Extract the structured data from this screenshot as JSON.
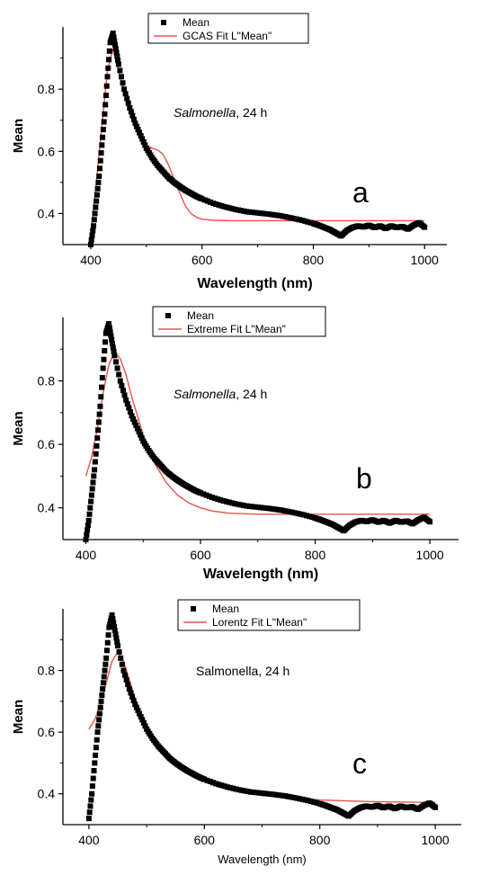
{
  "chart_data": [
    {
      "type": "scatter",
      "panel_letter": "a",
      "annotation": "Salmonella, 24 h",
      "annotation_italic_part": "Salmonella",
      "annotation_rest": ", 24 h",
      "xlabel": "Wavelength (nm)",
      "ylabel": "Mean",
      "xlim": [
        350,
        1040
      ],
      "ylim": [
        0.3,
        1.0
      ],
      "xticks": [
        400,
        600,
        800,
        1000
      ],
      "yticks": [
        0.4,
        0.6,
        0.8
      ],
      "grid": false,
      "legend_position": "top",
      "series": [
        {
          "name": "Mean",
          "style": "markers",
          "color": "#000000",
          "x": [
            400,
            405,
            410,
            415,
            420,
            425,
            430,
            435,
            440,
            445,
            450,
            460,
            470,
            480,
            490,
            500,
            510,
            520,
            530,
            540,
            550,
            560,
            570,
            580,
            590,
            600,
            620,
            640,
            660,
            680,
            700,
            720,
            740,
            760,
            780,
            800,
            810,
            820,
            830,
            840,
            850,
            860,
            870,
            880,
            890,
            900,
            910,
            920,
            930,
            940,
            950,
            960,
            970,
            980,
            990,
            1000
          ],
          "y": [
            0.3,
            0.36,
            0.44,
            0.52,
            0.62,
            0.72,
            0.84,
            0.95,
            0.98,
            0.93,
            0.88,
            0.8,
            0.74,
            0.69,
            0.65,
            0.61,
            0.58,
            0.555,
            0.535,
            0.515,
            0.5,
            0.487,
            0.475,
            0.465,
            0.455,
            0.447,
            0.433,
            0.422,
            0.413,
            0.406,
            0.402,
            0.398,
            0.393,
            0.386,
            0.378,
            0.368,
            0.362,
            0.355,
            0.348,
            0.338,
            0.328,
            0.345,
            0.355,
            0.36,
            0.357,
            0.362,
            0.355,
            0.36,
            0.352,
            0.36,
            0.355,
            0.358,
            0.35,
            0.362,
            0.37,
            0.356
          ]
        },
        {
          "name": "GCAS Fit L\"Mean\"",
          "style": "line",
          "color": "#e8534b",
          "x": [
            400,
            410,
            420,
            430,
            440,
            450,
            460,
            470,
            480,
            490,
            500,
            510,
            520,
            530,
            540,
            550,
            560,
            570,
            580,
            590,
            600,
            620,
            650,
            700,
            800,
            900,
            1000
          ],
          "y": [
            0.33,
            0.5,
            0.68,
            0.86,
            0.93,
            0.86,
            0.79,
            0.73,
            0.68,
            0.645,
            0.62,
            0.61,
            0.605,
            0.59,
            0.555,
            0.51,
            0.465,
            0.425,
            0.4,
            0.388,
            0.382,
            0.378,
            0.377,
            0.377,
            0.377,
            0.377,
            0.377
          ]
        }
      ]
    },
    {
      "type": "scatter",
      "panel_letter": "b",
      "annotation": "Salmonella, 24 h",
      "annotation_italic_part": "Salmonella",
      "annotation_rest": ", 24 h",
      "xlabel": "Wavelength (nm)",
      "ylabel": "Mean",
      "xlim": [
        360,
        1050
      ],
      "ylim": [
        0.3,
        1.0
      ],
      "xticks": [
        400,
        600,
        800,
        1000
      ],
      "yticks": [
        0.4,
        0.6,
        0.8
      ],
      "grid": false,
      "legend_position": "top",
      "series": [
        {
          "name": "Mean",
          "style": "markers",
          "color": "#000000",
          "x": [
            400,
            405,
            410,
            415,
            420,
            425,
            430,
            435,
            440,
            445,
            450,
            460,
            470,
            480,
            490,
            500,
            510,
            520,
            530,
            540,
            550,
            560,
            570,
            580,
            590,
            600,
            620,
            640,
            660,
            680,
            700,
            720,
            740,
            760,
            780,
            800,
            810,
            820,
            830,
            840,
            850,
            860,
            870,
            880,
            890,
            900,
            910,
            920,
            930,
            940,
            950,
            960,
            970,
            980,
            990,
            1000
          ],
          "y": [
            0.3,
            0.36,
            0.44,
            0.52,
            0.62,
            0.72,
            0.84,
            0.95,
            0.98,
            0.93,
            0.88,
            0.8,
            0.74,
            0.69,
            0.65,
            0.61,
            0.58,
            0.555,
            0.535,
            0.515,
            0.5,
            0.487,
            0.475,
            0.465,
            0.455,
            0.447,
            0.433,
            0.422,
            0.413,
            0.406,
            0.402,
            0.398,
            0.393,
            0.386,
            0.378,
            0.368,
            0.362,
            0.355,
            0.348,
            0.338,
            0.328,
            0.345,
            0.355,
            0.36,
            0.357,
            0.362,
            0.355,
            0.36,
            0.352,
            0.36,
            0.355,
            0.358,
            0.35,
            0.362,
            0.37,
            0.356
          ]
        },
        {
          "name": "Extreme Fit L\"Mean\"",
          "style": "line",
          "color": "#e8534b",
          "x": [
            400,
            410,
            420,
            430,
            440,
            450,
            460,
            470,
            480,
            490,
            500,
            520,
            540,
            560,
            580,
            600,
            620,
            650,
            700,
            750,
            800,
            900,
            1000
          ],
          "y": [
            0.5,
            0.56,
            0.65,
            0.76,
            0.85,
            0.89,
            0.87,
            0.82,
            0.75,
            0.69,
            0.63,
            0.54,
            0.48,
            0.44,
            0.415,
            0.4,
            0.39,
            0.383,
            0.38,
            0.38,
            0.38,
            0.38,
            0.38
          ]
        }
      ]
    },
    {
      "type": "scatter",
      "panel_letter": "c",
      "annotation": "Salmonella, 24 h",
      "xlabel": "Wavelength (nm)",
      "ylabel": "Mean",
      "xlim": [
        355,
        1045
      ],
      "ylim": [
        0.3,
        1.0
      ],
      "xticks": [
        400,
        600,
        800,
        1000
      ],
      "yticks": [
        0.4,
        0.6,
        0.8
      ],
      "grid": false,
      "legend_position": "top-right",
      "series": [
        {
          "name": "Mean",
          "style": "markers",
          "color": "#000000",
          "x": [
            400,
            405,
            410,
            415,
            420,
            425,
            430,
            435,
            440,
            445,
            450,
            460,
            470,
            480,
            490,
            500,
            510,
            520,
            530,
            540,
            550,
            560,
            570,
            580,
            590,
            600,
            620,
            640,
            660,
            680,
            700,
            720,
            740,
            760,
            780,
            800,
            810,
            820,
            830,
            840,
            850,
            860,
            870,
            880,
            890,
            900,
            910,
            920,
            930,
            940,
            950,
            960,
            970,
            980,
            990,
            1000
          ],
          "y": [
            0.32,
            0.4,
            0.5,
            0.6,
            0.68,
            0.76,
            0.84,
            0.94,
            0.98,
            0.93,
            0.88,
            0.8,
            0.74,
            0.69,
            0.65,
            0.61,
            0.58,
            0.555,
            0.535,
            0.515,
            0.5,
            0.487,
            0.475,
            0.465,
            0.455,
            0.447,
            0.433,
            0.422,
            0.413,
            0.406,
            0.402,
            0.398,
            0.393,
            0.386,
            0.378,
            0.368,
            0.362,
            0.355,
            0.348,
            0.338,
            0.328,
            0.345,
            0.355,
            0.36,
            0.357,
            0.362,
            0.355,
            0.36,
            0.352,
            0.36,
            0.355,
            0.358,
            0.35,
            0.362,
            0.37,
            0.356
          ]
        },
        {
          "name": "Lorentz Fit L\"Mean\"",
          "style": "line",
          "color": "#e8534b",
          "x": [
            400,
            410,
            420,
            430,
            440,
            450,
            460,
            470,
            480,
            490,
            500,
            520,
            540,
            560,
            580,
            600,
            620,
            650,
            700,
            750,
            800,
            900,
            1000
          ],
          "y": [
            0.61,
            0.64,
            0.69,
            0.76,
            0.83,
            0.86,
            0.83,
            0.77,
            0.71,
            0.66,
            0.62,
            0.56,
            0.51,
            0.48,
            0.455,
            0.44,
            0.425,
            0.41,
            0.395,
            0.388,
            0.38,
            0.374,
            0.372
          ]
        }
      ]
    }
  ]
}
